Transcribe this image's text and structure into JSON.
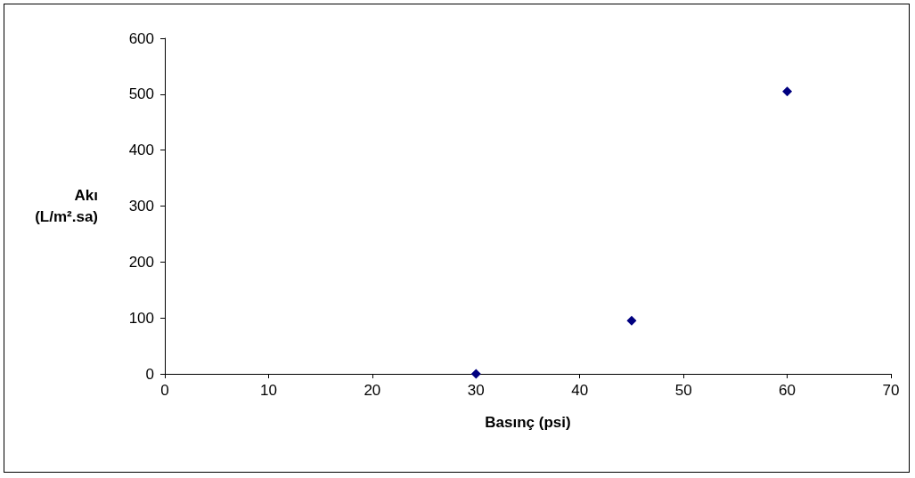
{
  "chart_data": {
    "type": "scatter",
    "xlabel": "Basınç (psi)",
    "ylabel": "Akı\n(L/m².sa)",
    "x": [
      30,
      45,
      60
    ],
    "series": [
      {
        "color": "#000080",
        "values": [
          0,
          95,
          505
        ]
      }
    ],
    "xlim": [
      0,
      70
    ],
    "xticks": [
      0,
      10,
      20,
      30,
      40,
      50,
      60,
      70
    ],
    "ylim": [
      0,
      600
    ],
    "yticks": [
      0,
      100,
      200,
      300,
      400,
      500,
      600
    ],
    "grid": false,
    "marker": "diamond"
  }
}
